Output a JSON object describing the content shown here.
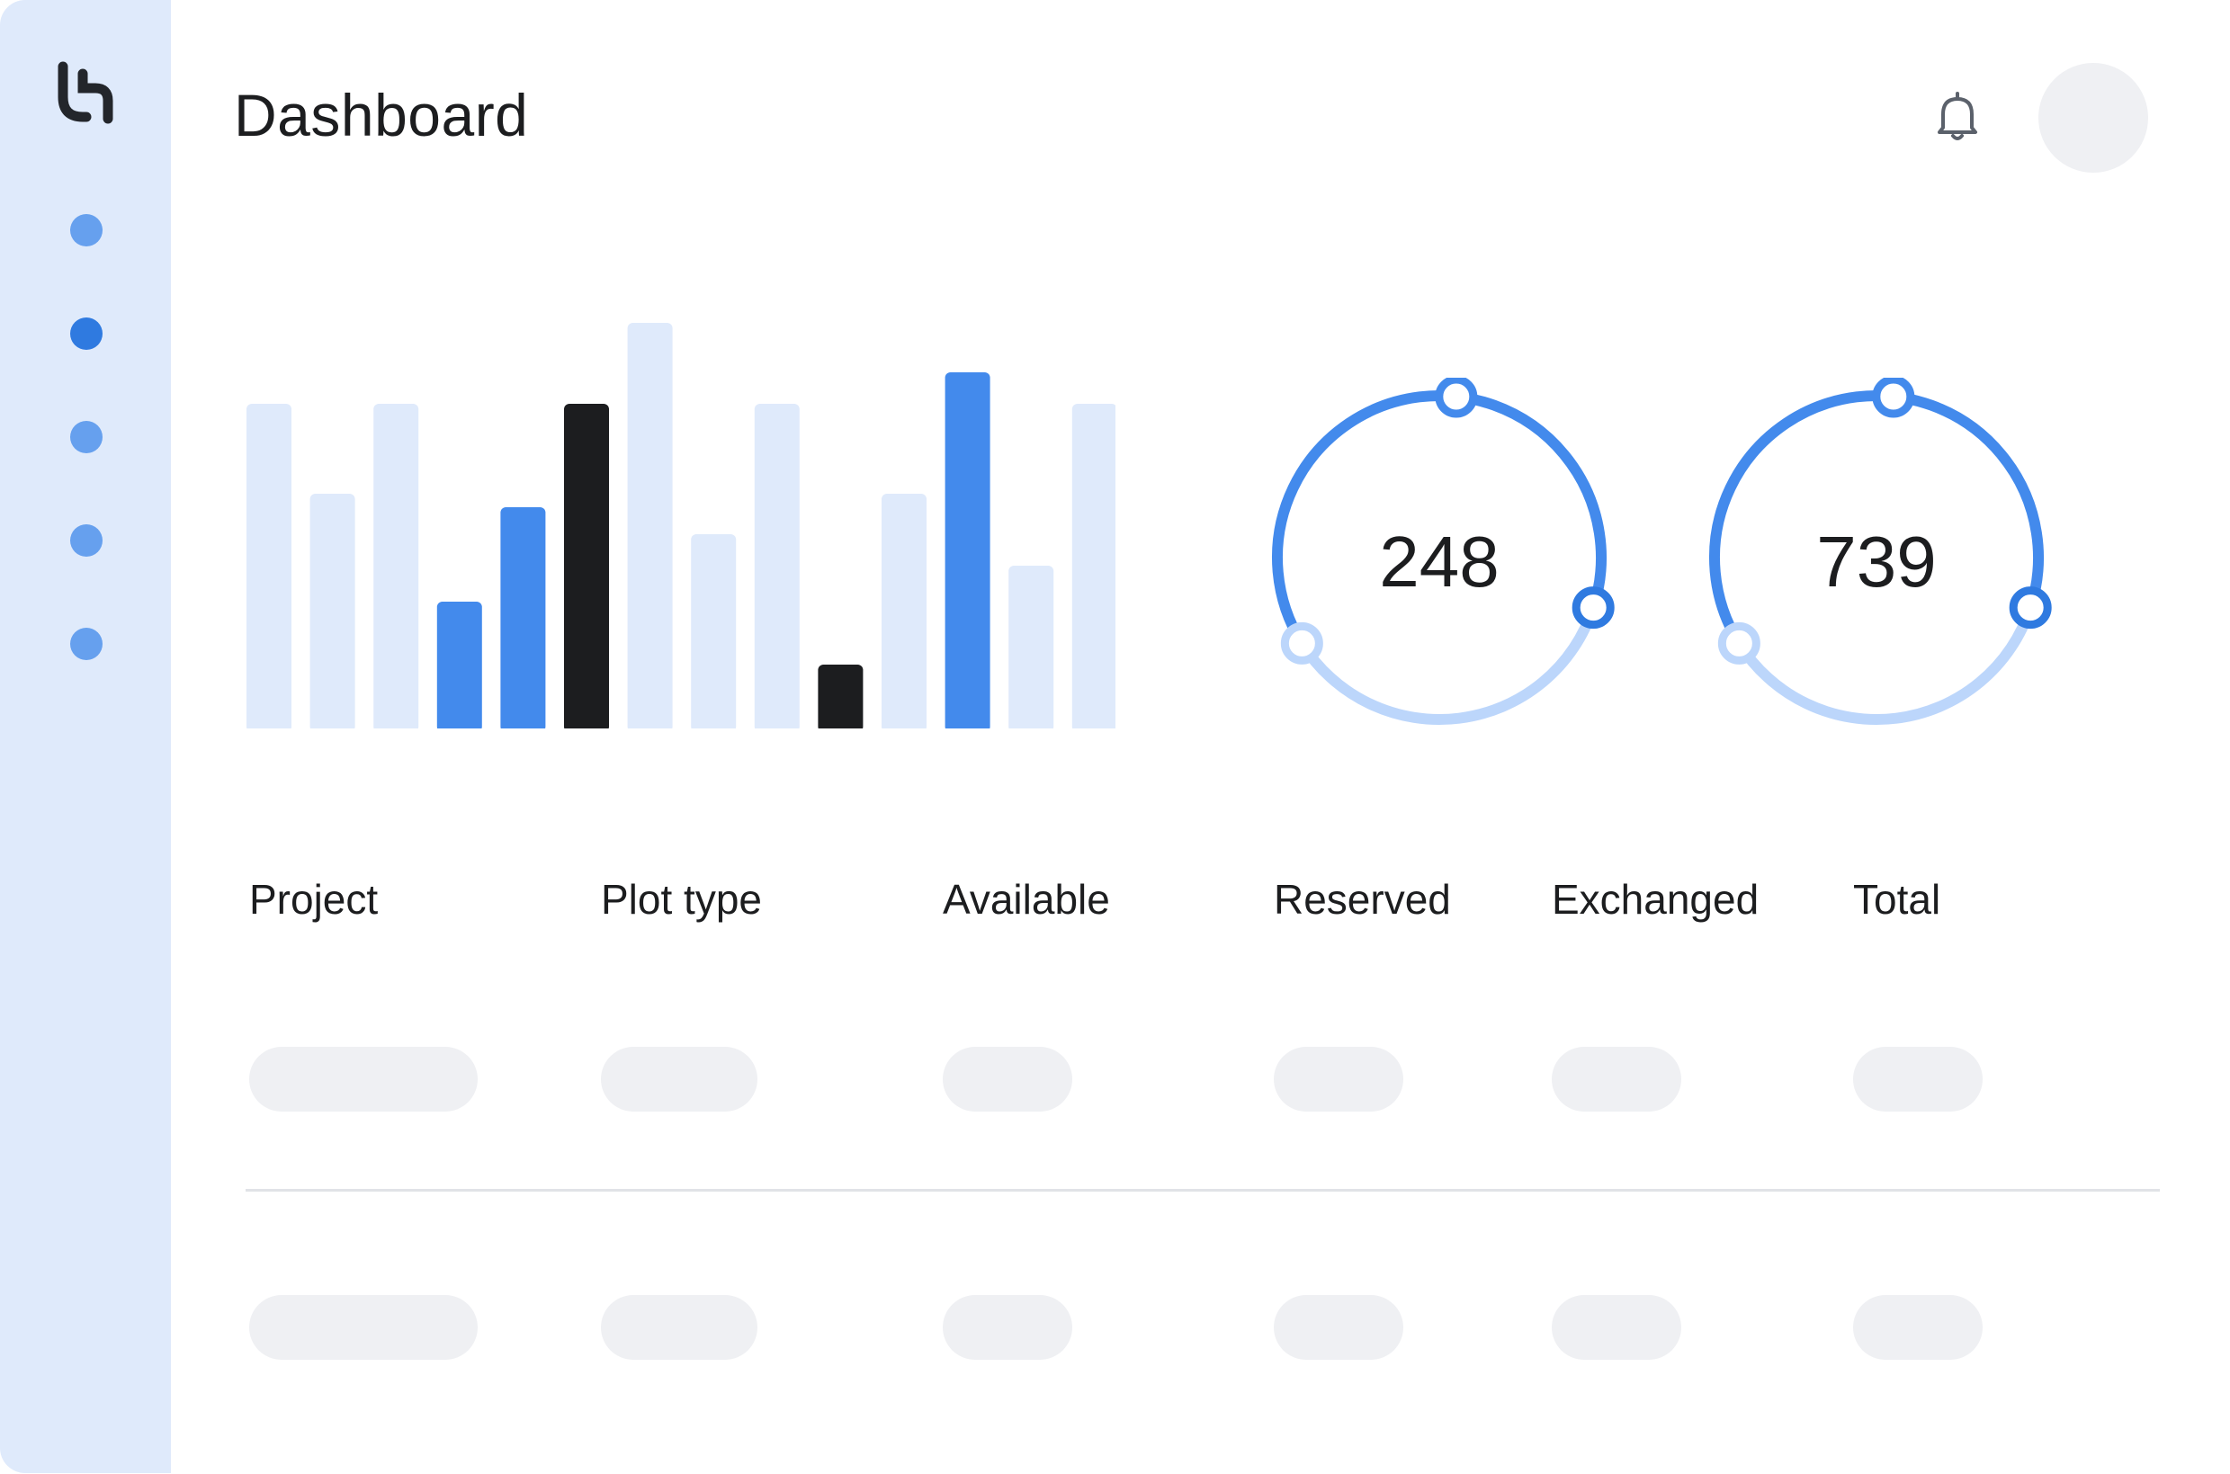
{
  "header": {
    "title": "Dashboard",
    "notification_icon": "bell-icon",
    "avatar": "avatar"
  },
  "sidebar": {
    "logo_icon": "logo-icon",
    "items": [
      {
        "icon": "nav-dot",
        "active": false
      },
      {
        "icon": "nav-dot",
        "active": true
      },
      {
        "icon": "nav-dot",
        "active": false
      },
      {
        "icon": "nav-dot",
        "active": false
      },
      {
        "icon": "nav-dot",
        "active": false
      }
    ]
  },
  "colors": {
    "accent": "#438aec",
    "accent_dark": "#2f7ae0",
    "light": "#dfeafb",
    "dark": "#1c1d1f",
    "ring_light": "#bcd6fb"
  },
  "chart_data": [
    {
      "type": "bar",
      "values": [
        73,
        53,
        73,
        29,
        50,
        73,
        91,
        44,
        73,
        15,
        53,
        80,
        37,
        73
      ],
      "colors": [
        "light",
        "light",
        "light",
        "accent",
        "accent",
        "dark",
        "light",
        "light",
        "light",
        "dark",
        "light",
        "accent",
        "light",
        "light"
      ],
      "ylim": [
        0,
        100
      ],
      "grid": false
    }
  ],
  "stats": [
    {
      "value": "248"
    },
    {
      "value": "739"
    }
  ],
  "table": {
    "columns": [
      "Project",
      "Plot type",
      "Available",
      "Reserved",
      "Exchanged",
      "Total"
    ],
    "rows": 2
  }
}
